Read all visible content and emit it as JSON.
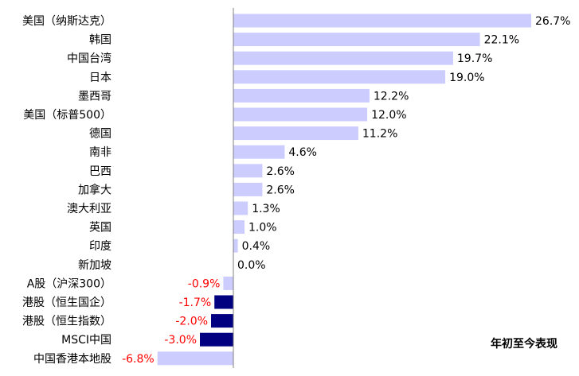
{
  "chart_data": {
    "type": "bar",
    "orientation": "horizontal",
    "categories": [
      "美国（纳斯达克）",
      "韩国",
      "中国台湾",
      "日本",
      "墨西哥",
      "美国（标普500）",
      "德国",
      "南非",
      "巴西",
      "加拿大",
      "澳大利亚",
      "英国",
      "印度",
      "新加坡",
      "A股（沪深300）",
      "港股（恒生国企）",
      "港股（恒生指数）",
      "MSCI中国",
      "中国香港本地股"
    ],
    "values": [
      26.7,
      22.1,
      19.7,
      19.0,
      12.2,
      12.0,
      11.2,
      4.6,
      2.6,
      2.6,
      1.3,
      1.0,
      0.4,
      0.0,
      -0.9,
      -1.7,
      -2.0,
      -3.0,
      -6.8
    ],
    "value_labels": [
      "26.7%",
      "22.1%",
      "19.7%",
      "19.0%",
      "12.2%",
      "12.0%",
      "11.2%",
      "4.6%",
      "2.6%",
      "2.6%",
      "1.3%",
      "1.0%",
      "0.4%",
      "0.0%",
      "-0.9%",
      "-1.7%",
      "-2.0%",
      "-3.0%",
      "-6.8%"
    ],
    "bar_colors": [
      "#ccccff",
      "#ccccff",
      "#ccccff",
      "#ccccff",
      "#ccccff",
      "#ccccff",
      "#ccccff",
      "#ccccff",
      "#ccccff",
      "#ccccff",
      "#ccccff",
      "#ccccff",
      "#ccccff",
      "#ccccff",
      "#ccccff",
      "#000080",
      "#000080",
      "#000080",
      "#ccccff"
    ],
    "positive_label_color": "#000000",
    "negative_label_color": "#ff0000",
    "axis_color": "#808080",
    "xlim": [
      -6.8,
      26.7
    ],
    "grid": false,
    "legend_note": "年初至今表现",
    "legend_position": "bottom-right"
  }
}
